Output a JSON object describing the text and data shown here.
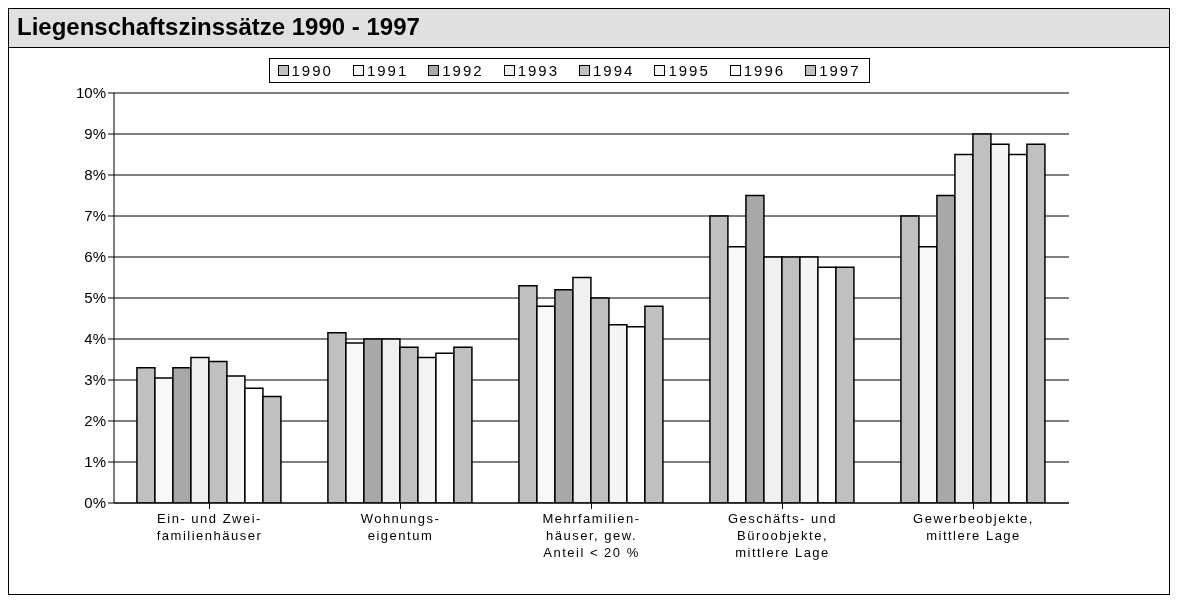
{
  "chart_data": {
    "type": "bar",
    "title": "Liegenschaftszinssätze 1990 - 1997",
    "categories": [
      "Ein- und Zwei-\nfamilienhäuser",
      "Wohnungs-\neigentum",
      "Mehrfamilien-\nhäuser, gew.\nAnteil < 20 %",
      "Geschäfts- und\nBüroobjekte,\nmittlere Lage",
      "Gewerbeobjekte,\nmittlere Lage"
    ],
    "series": [
      {
        "name": "1990",
        "color": "#c0c0c0",
        "values": [
          3.3,
          4.15,
          5.3,
          7.0,
          7.0
        ]
      },
      {
        "name": "1991",
        "color": "#f8f8f8",
        "values": [
          3.05,
          3.9,
          4.8,
          6.25,
          6.25
        ]
      },
      {
        "name": "1992",
        "color": "#a8a8a8",
        "values": [
          3.3,
          4.0,
          5.2,
          7.5,
          7.5
        ]
      },
      {
        "name": "1993",
        "color": "#f0f0f0",
        "values": [
          3.55,
          4.0,
          5.5,
          6.0,
          8.5
        ]
      },
      {
        "name": "1994",
        "color": "#c0c0c0",
        "values": [
          3.45,
          3.8,
          5.0,
          6.0,
          9.0
        ]
      },
      {
        "name": "1995",
        "color": "#f4f4f4",
        "values": [
          3.1,
          3.55,
          4.35,
          6.0,
          8.75
        ]
      },
      {
        "name": "1996",
        "color": "#ffffff",
        "values": [
          2.8,
          3.65,
          4.3,
          5.75,
          8.5
        ]
      },
      {
        "name": "1997",
        "color": "#c0c0c0",
        "values": [
          2.6,
          3.8,
          4.8,
          5.75,
          8.75
        ]
      }
    ],
    "ylim": [
      0,
      10
    ],
    "yticks": [
      {
        "value": 0,
        "label": "0%"
      },
      {
        "value": 1,
        "label": "1%"
      },
      {
        "value": 2,
        "label": "2%"
      },
      {
        "value": 3,
        "label": "3%"
      },
      {
        "value": 4,
        "label": "4%"
      },
      {
        "value": 5,
        "label": "5%"
      },
      {
        "value": 6,
        "label": "6%"
      },
      {
        "value": 7,
        "label": "7%"
      },
      {
        "value": 8,
        "label": "8%"
      },
      {
        "value": 9,
        "label": "9%"
      },
      {
        "value": 10,
        "label": "10%"
      }
    ],
    "grid": "y",
    "legend": "top"
  }
}
